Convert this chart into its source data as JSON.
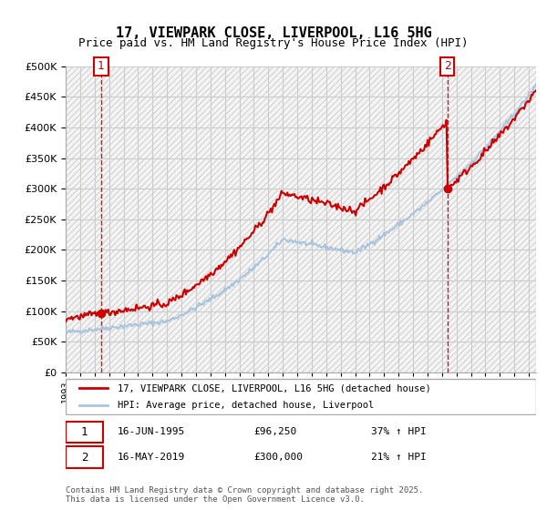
{
  "title1": "17, VIEWPARK CLOSE, LIVERPOOL, L16 5HG",
  "title2": "Price paid vs. HM Land Registry's House Price Index (HPI)",
  "legend_line1": "17, VIEWPARK CLOSE, LIVERPOOL, L16 5HG (detached house)",
  "legend_line2": "HPI: Average price, detached house, Liverpool",
  "annotation1_label": "1",
  "annotation1_date": "16-JUN-1995",
  "annotation1_price": "£96,250",
  "annotation1_hpi": "37% ↑ HPI",
  "annotation2_label": "2",
  "annotation2_date": "16-MAY-2019",
  "annotation2_price": "£300,000",
  "annotation2_hpi": "21% ↑ HPI",
  "footnote": "Contains HM Land Registry data © Crown copyright and database right 2025.\nThis data is licensed under the Open Government Licence v3.0.",
  "price_color": "#cc0000",
  "hpi_color": "#aac4dd",
  "vline_color": "#cc0000",
  "grid_color": "#cccccc",
  "bg_hatch_color": "#e8e8e8",
  "ylim_min": 0,
  "ylim_max": 500000,
  "ytick_step": 50000,
  "sale1_year": 1995.46,
  "sale1_price": 96250,
  "sale2_year": 2019.37,
  "sale2_price": 300000,
  "xmin": 1993,
  "xmax": 2025.5
}
